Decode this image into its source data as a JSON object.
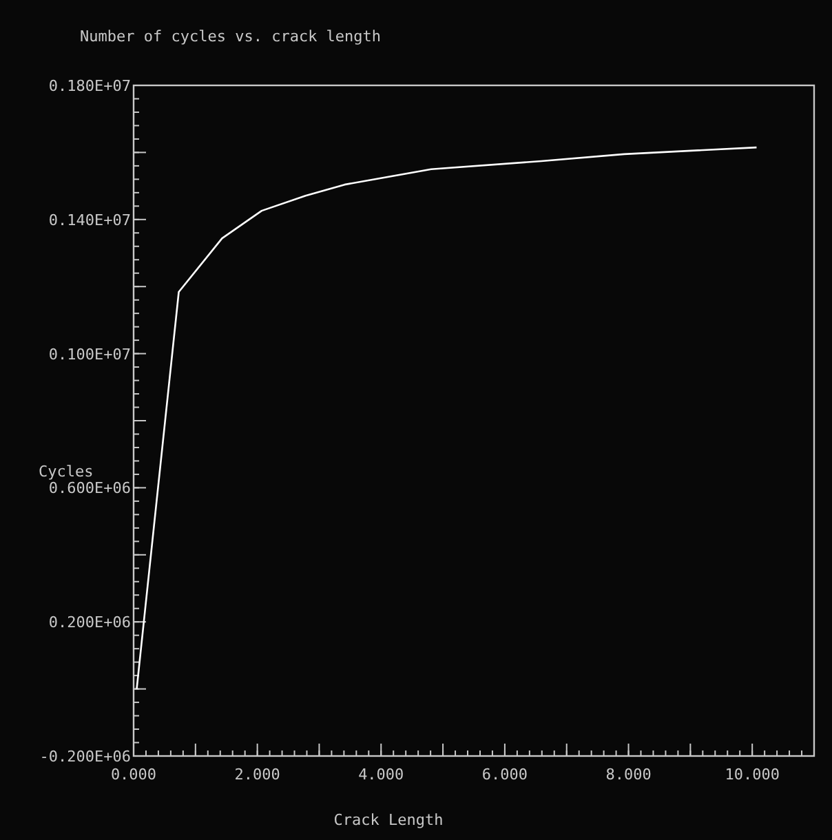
{
  "chart_data": {
    "type": "line",
    "title": "Number of cycles vs. crack length",
    "xlabel": "Crack Length",
    "ylabel": "Cycles",
    "x": [
      0.05,
      0.73,
      1.43,
      2.07,
      2.78,
      3.41,
      4.81,
      6.59,
      7.93,
      10.07
    ],
    "series": [
      {
        "color": "#ffffff",
        "values": [
          0,
          1184000,
          1344000,
          1426000,
          1471000,
          1504000,
          1550000,
          1574000,
          1595000,
          1615000
        ]
      }
    ],
    "xlim": [
      0,
      11
    ],
    "xticks": [
      {
        "value": 0,
        "label": "0.000"
      },
      {
        "value": 1,
        "label": null
      },
      {
        "value": 2,
        "label": "2.000"
      },
      {
        "value": 3,
        "label": null
      },
      {
        "value": 4,
        "label": "4.000"
      },
      {
        "value": 5,
        "label": null
      },
      {
        "value": 6,
        "label": "6.000"
      },
      {
        "value": 7,
        "label": null
      },
      {
        "value": 8,
        "label": "8.000"
      },
      {
        "value": 9,
        "label": null
      },
      {
        "value": 10,
        "label": "10.000"
      }
    ],
    "ylim": [
      -200000,
      1800000
    ],
    "yticks": [
      {
        "value": -200000,
        "label": "-0.200E+06"
      },
      {
        "value": 0,
        "label": null
      },
      {
        "value": 200000,
        "label": "0.200E+06"
      },
      {
        "value": 400000,
        "label": null
      },
      {
        "value": 600000,
        "label": "0.600E+06"
      },
      {
        "value": 800000,
        "label": null
      },
      {
        "value": 1000000,
        "label": "0.100E+07"
      },
      {
        "value": 1200000,
        "label": null
      },
      {
        "value": 1400000,
        "label": "0.140E+07"
      },
      {
        "value": 1600000,
        "label": null
      },
      {
        "value": 1800000,
        "label": "0.180E+07"
      }
    ],
    "grid": false,
    "marker": "none",
    "line_style": "solid"
  }
}
